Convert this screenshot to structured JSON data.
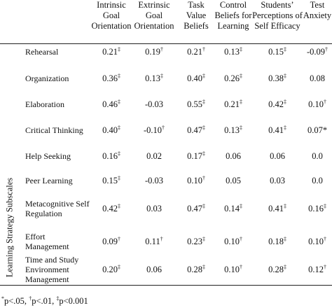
{
  "table": {
    "side_label": "Learning Strategy Subscales",
    "columns": [
      "Intrinsic Goal Orientation",
      "Extrinsic Goal Orientation",
      "Task Value Beliefs",
      "Control Beliefs for Learning",
      "Students’ Perceptions of Self Efficacy",
      "Test Anxiety"
    ],
    "rows": [
      {
        "label": "Rehearsal",
        "cells": [
          {
            "v": "0.21",
            "s": "‡"
          },
          {
            "v": "0.19",
            "s": "†"
          },
          {
            "v": "0.21",
            "s": "†"
          },
          {
            "v": "0.13",
            "s": "‡"
          },
          {
            "v": "0.15",
            "s": "‡"
          },
          {
            "v": "-0.09",
            "s": "†"
          }
        ]
      },
      {
        "label": "Organization",
        "cells": [
          {
            "v": "0.36",
            "s": "‡"
          },
          {
            "v": "0.13",
            "s": "‡"
          },
          {
            "v": "0.40",
            "s": "‡"
          },
          {
            "v": "0.26",
            "s": "‡"
          },
          {
            "v": "0.38",
            "s": "‡"
          },
          {
            "v": "0.08",
            "s": ""
          }
        ]
      },
      {
        "label": "Elaboration",
        "cells": [
          {
            "v": "0.46",
            "s": "‡"
          },
          {
            "v": "-0.03",
            "s": ""
          },
          {
            "v": "0.55",
            "s": "‡"
          },
          {
            "v": "0.21",
            "s": "‡"
          },
          {
            "v": "0.42",
            "s": "‡"
          },
          {
            "v": "0.10",
            "s": "†"
          }
        ]
      },
      {
        "label": "Critical Thinking",
        "cells": [
          {
            "v": "0.40",
            "s": "‡"
          },
          {
            "v": "-0.10",
            "s": "†"
          },
          {
            "v": "0.47",
            "s": "‡"
          },
          {
            "v": "0.13",
            "s": "‡"
          },
          {
            "v": "0.41",
            "s": "‡"
          },
          {
            "v": "0.07*",
            "s": ""
          }
        ]
      },
      {
        "label": "Help Seeking",
        "cells": [
          {
            "v": "0.16",
            "s": "‡"
          },
          {
            "v": "0.02",
            "s": ""
          },
          {
            "v": "0.17",
            "s": "‡"
          },
          {
            "v": "0.06",
            "s": ""
          },
          {
            "v": "0.06",
            "s": ""
          },
          {
            "v": "0.0",
            "s": ""
          }
        ]
      },
      {
        "label": "Peer Learning",
        "cells": [
          {
            "v": "0.15",
            "s": "‡"
          },
          {
            "v": "-0.03",
            "s": ""
          },
          {
            "v": "0.10",
            "s": "†"
          },
          {
            "v": "0.05",
            "s": ""
          },
          {
            "v": "0.03",
            "s": ""
          },
          {
            "v": "0.0",
            "s": ""
          }
        ]
      },
      {
        "label": "Metacognitive Self Regulation",
        "cells": [
          {
            "v": "0.42",
            "s": "‡"
          },
          {
            "v": "0.03",
            "s": ""
          },
          {
            "v": "0.47",
            "s": "‡"
          },
          {
            "v": "0.14",
            "s": "‡"
          },
          {
            "v": "0.41",
            "s": "‡"
          },
          {
            "v": "0.16",
            "s": "‡"
          }
        ]
      },
      {
        "label": "Effort Management",
        "cells": [
          {
            "v": "0.09",
            "s": "†"
          },
          {
            "v": "0.11",
            "s": "†"
          },
          {
            "v": "0.23",
            "s": "‡"
          },
          {
            "v": "0.10",
            "s": "†"
          },
          {
            "v": "0.18",
            "s": "‡"
          },
          {
            "v": "0.10",
            "s": "†"
          }
        ]
      },
      {
        "label": "Time and Study Environment Management",
        "cells": [
          {
            "v": "0.20",
            "s": "‡"
          },
          {
            "v": "0.06",
            "s": ""
          },
          {
            "v": "0.28",
            "s": "‡"
          },
          {
            "v": "0.10",
            "s": "†"
          },
          {
            "v": "0.28",
            "s": "‡"
          },
          {
            "v": "0.12",
            "s": "†"
          }
        ]
      }
    ],
    "footnote": {
      "star_mark": "*",
      "star_text": "p<.05, ",
      "dagger_mark": "†",
      "dagger_text": "p<.01, ",
      "ddagger_mark": "‡",
      "ddagger_text": "p<0.001"
    }
  }
}
